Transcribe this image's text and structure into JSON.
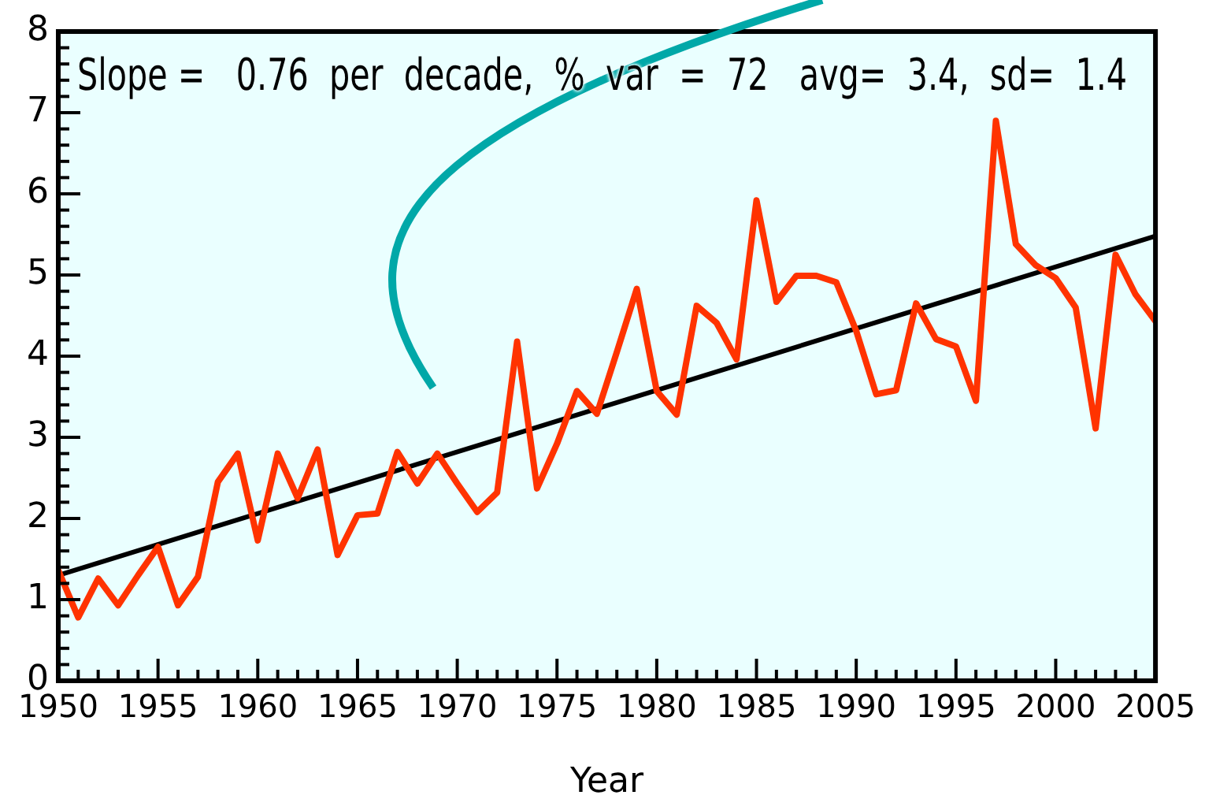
{
  "chart_data": {
    "type": "line",
    "xlabel": "Year",
    "annotations": [
      "Slope =   0.76  per  decade,  %  var  =  72   avg=  3.4,  sd=  1.4"
    ],
    "x": [
      1950,
      1951,
      1952,
      1953,
      1954,
      1955,
      1956,
      1957,
      1958,
      1959,
      1960,
      1961,
      1962,
      1963,
      1964,
      1965,
      1966,
      1967,
      1968,
      1969,
      1970,
      1971,
      1972,
      1973,
      1974,
      1975,
      1976,
      1977,
      1978,
      1979,
      1980,
      1981,
      1982,
      1983,
      1984,
      1985,
      1986,
      1987,
      1988,
      1989,
      1990,
      1991,
      1992,
      1993,
      1994,
      1995,
      1996,
      1997,
      1998,
      1999,
      2000,
      2001,
      2002,
      2003,
      2004,
      2005
    ],
    "series": [
      {
        "color": "#ff3300",
        "values": [
          1.36,
          0.78,
          1.26,
          0.93,
          1.3,
          1.65,
          0.93,
          1.28,
          2.45,
          2.8,
          1.73,
          2.8,
          2.25,
          2.85,
          1.55,
          2.04,
          2.06,
          2.82,
          2.43,
          2.8,
          2.43,
          2.08,
          2.32,
          4.18,
          2.37,
          2.92,
          3.57,
          3.29,
          4.05,
          4.83,
          3.57,
          3.28,
          4.62,
          4.41,
          3.96,
          5.92,
          4.67,
          4.99,
          4.99,
          4.91,
          4.31,
          3.53,
          3.58,
          4.65,
          4.21,
          4.12,
          3.45,
          6.9,
          5.38,
          5.12,
          4.96,
          4.6,
          3.11,
          5.25,
          4.76,
          4.43
        ]
      },
      {
        "type": "line",
        "color": "#000000",
        "x": [
          1950,
          2005
        ],
        "values": [
          1.3,
          5.48
        ]
      }
    ],
    "xlim": [
      1950,
      2005
    ],
    "xticks": [
      1950,
      1955,
      1960,
      1965,
      1970,
      1975,
      1980,
      1985,
      1990,
      1995,
      2000,
      2005
    ],
    "ylim": [
      0,
      8
    ],
    "yticks": [
      0,
      1,
      2,
      3,
      4,
      5,
      6,
      7,
      8
    ],
    "grid": false,
    "legend": false,
    "marker": "none",
    "line_style": "solid"
  }
}
